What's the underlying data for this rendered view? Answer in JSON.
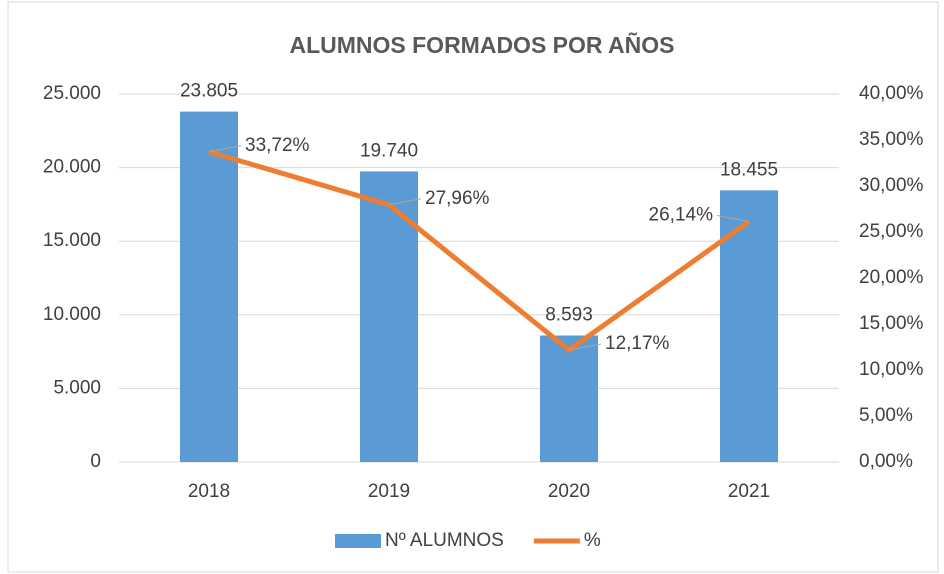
{
  "chart_data": {
    "type": "bar",
    "title": "ALUMNOS FORMADOS POR AÑOS",
    "categories": [
      "2018",
      "2019",
      "2020",
      "2021"
    ],
    "series": [
      {
        "name": "Nº ALUMNOS",
        "color": "#5b9bd5",
        "type": "bar",
        "axis": "y",
        "values": [
          23805,
          19740,
          8593,
          18455
        ],
        "value_labels": [
          "23.805",
          "19.740",
          "8.593",
          "18.455"
        ]
      },
      {
        "name": "%",
        "color": "#ed7d31",
        "type": "line",
        "axis": "y2",
        "values": [
          33.72,
          27.96,
          12.17,
          26.14
        ],
        "value_labels": [
          "33,72%",
          "27,96%",
          "12,17%",
          "26,14%"
        ]
      }
    ],
    "ylim": [
      0,
      25000
    ],
    "yticks": [
      0,
      {
        "value": 5000,
        "label": "5.000"
      },
      {
        "value": 10000,
        "label": "10.000"
      },
      {
        "value": 15000,
        "label": "15.000"
      },
      {
        "value": 20000,
        "label": "20.000"
      },
      {
        "value": 25000,
        "label": "25.000"
      }
    ],
    "y2lim": [
      0,
      40
    ],
    "y2ticks": [
      {
        "value": 0,
        "label": "0,00%"
      },
      {
        "value": 5,
        "label": "5,00%"
      },
      {
        "value": 10,
        "label": "10,00%"
      },
      {
        "value": 15,
        "label": "15,00%"
      },
      {
        "value": 20,
        "label": "20,00%"
      },
      {
        "value": 25,
        "label": "25,00%"
      },
      {
        "value": 30,
        "label": "30,00%"
      },
      {
        "value": 35,
        "label": "35,00%"
      },
      {
        "value": 40,
        "label": "40,00%"
      }
    ],
    "grid": true,
    "legend": "bottom"
  }
}
